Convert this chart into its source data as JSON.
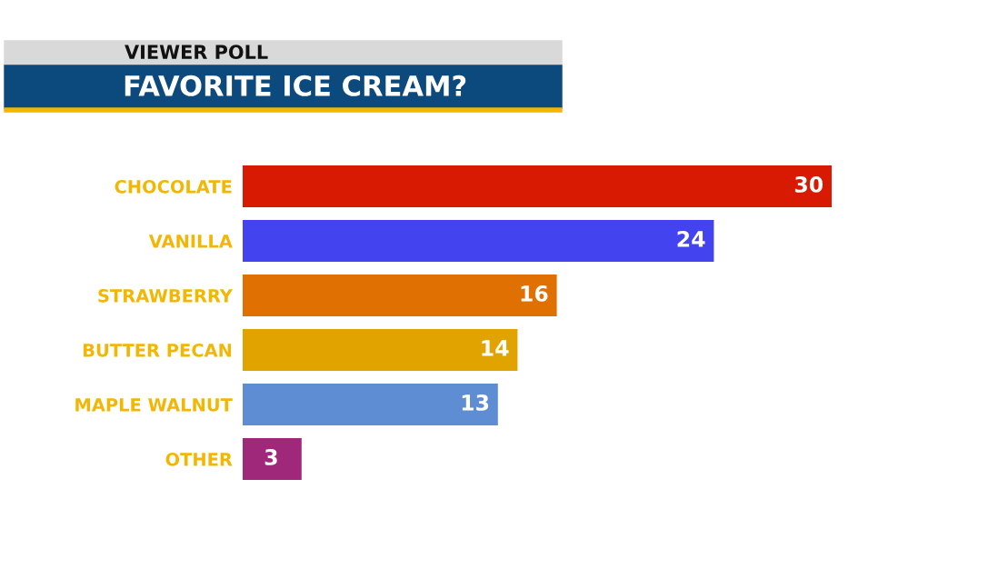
{
  "chart_data": {
    "type": "bar",
    "orientation": "horizontal",
    "title": "FAVORITE ICE CREAM?",
    "subtitle": "VIEWER POLL",
    "categories": [
      "CHOCOLATE",
      "VANILLA",
      "STRAWBERRY",
      "BUTTER PECAN",
      "MAPLE WALNUT",
      "OTHER"
    ],
    "values": [
      30,
      24,
      16,
      14,
      13,
      3
    ],
    "colors": [
      "#d81a02",
      "#4343ef",
      "#e07002",
      "#e0a300",
      "#5f8dd3",
      "#a0287a"
    ],
    "data_labels": true,
    "grid": false,
    "legend": false
  }
}
